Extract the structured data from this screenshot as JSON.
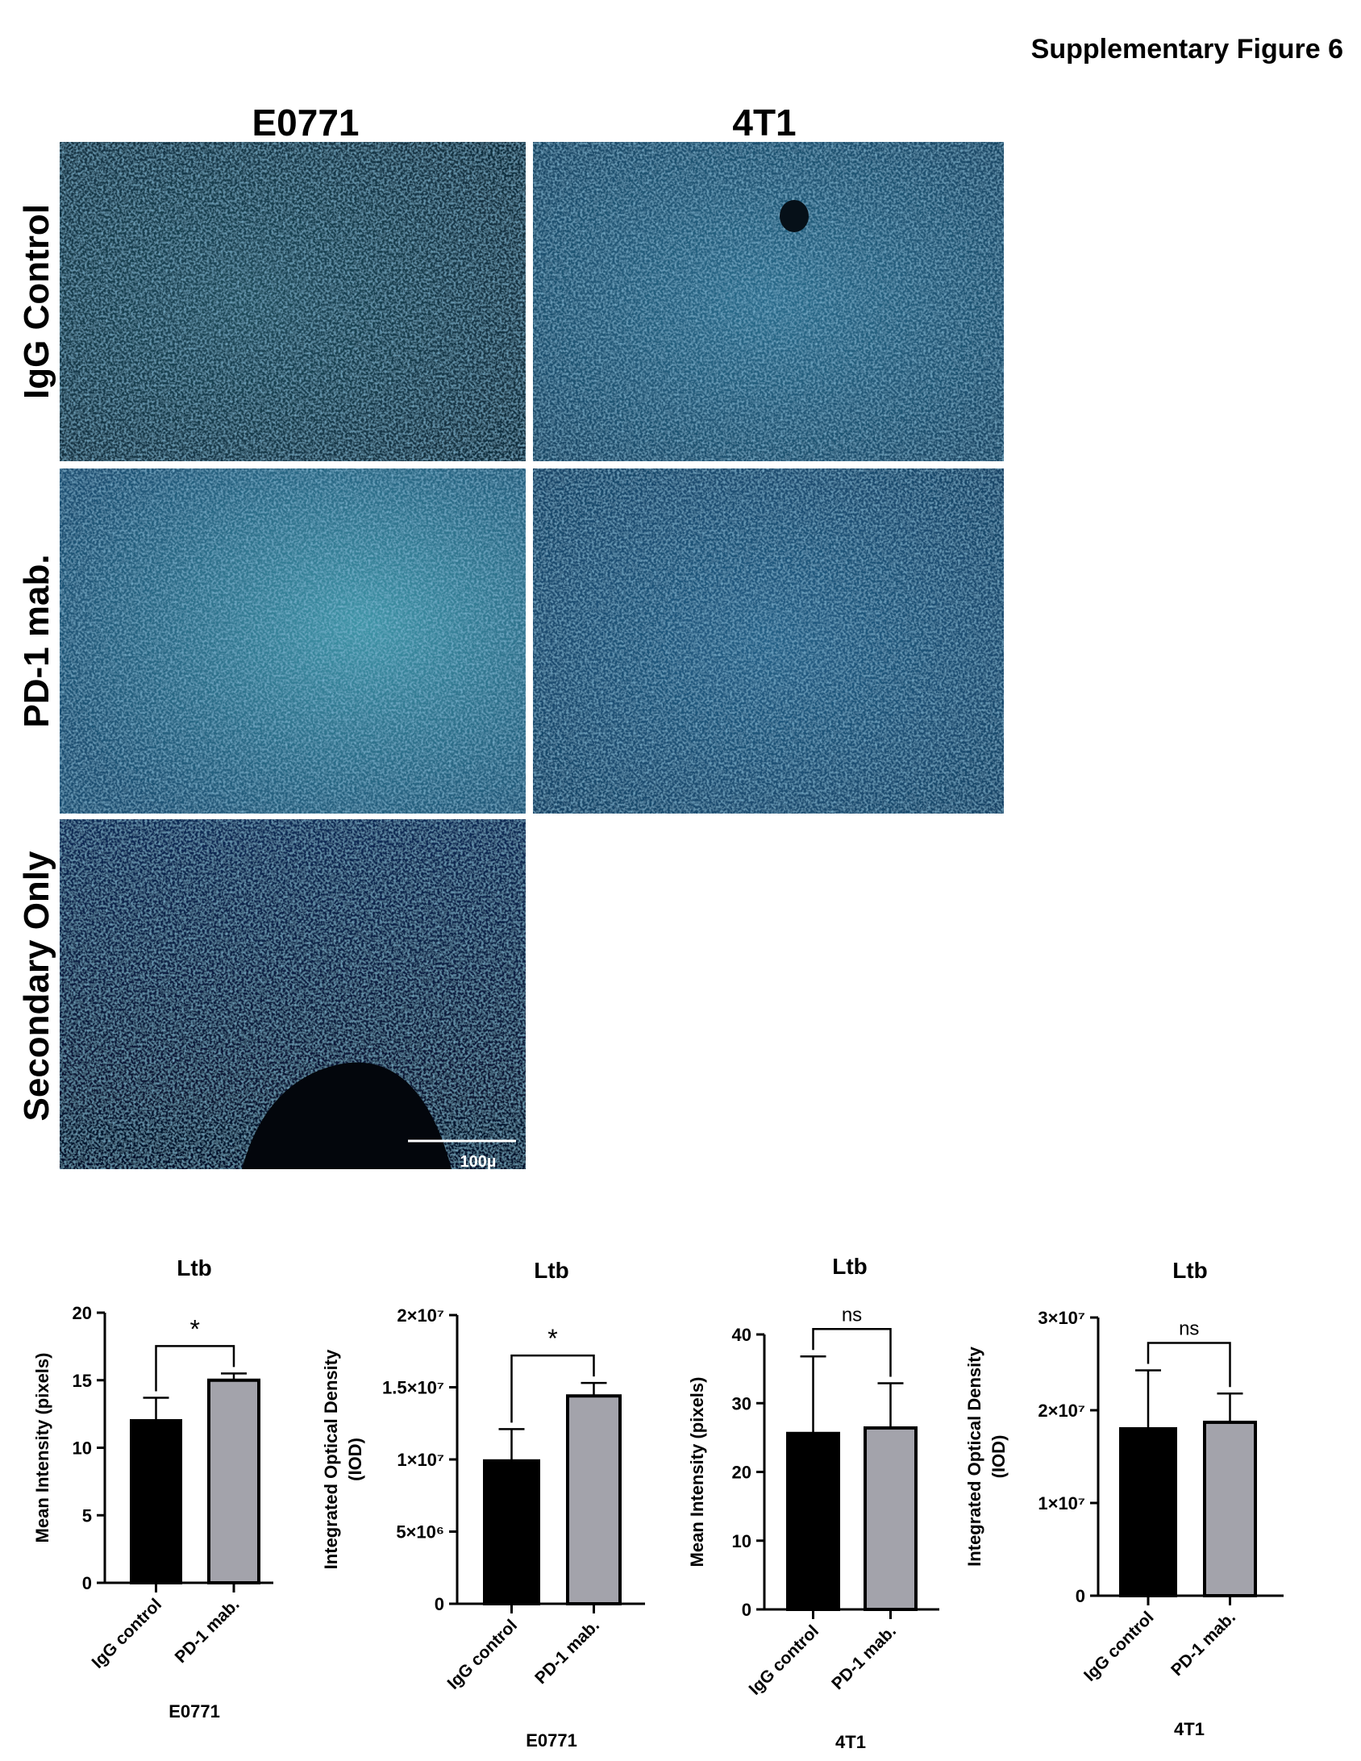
{
  "figure": {
    "title": "Supplementary Figure 6",
    "columns": [
      "E0771",
      "4T1"
    ],
    "rows": [
      "IgG Control",
      "PD-1 mab.",
      "Secondary Only"
    ],
    "scale_bar": "100µ"
  },
  "chart_data": [
    {
      "type": "bar",
      "title": "Ltb",
      "ylabel": [
        "Mean Intensity (pixels)"
      ],
      "xlabel": "E0771",
      "categories": [
        "IgG control",
        "PD-1 mab."
      ],
      "values": [
        12.0,
        15.0
      ],
      "errors": [
        1.7,
        0.5
      ],
      "colors": [
        "#000000",
        "#a3a3ab"
      ],
      "ylim": [
        0,
        20
      ],
      "yticks": [
        0,
        5,
        10,
        15,
        20
      ],
      "annotation": "*"
    },
    {
      "type": "bar",
      "title": "Ltb",
      "ylabel": [
        "Integrated Optical  Density",
        "(IOD)"
      ],
      "xlabel": "E0771",
      "categories": [
        "IgG control",
        "PD-1 mab."
      ],
      "values": [
        9900000,
        14400000
      ],
      "errors": [
        2200000,
        900000
      ],
      "colors": [
        "#000000",
        "#a3a3ab"
      ],
      "ylim": [
        0,
        20000000
      ],
      "yticks": [
        0,
        {
          "value": 5000000,
          "label": "5×10⁶"
        },
        {
          "value": 10000000,
          "label": "1×10⁷"
        },
        {
          "value": 15000000,
          "label": "1.5×10⁷"
        },
        {
          "value": 20000000,
          "label": "2×10⁷"
        }
      ],
      "annotation": "*"
    },
    {
      "type": "bar",
      "title": "Ltb",
      "ylabel": [
        "Mean Intensity (pixels)"
      ],
      "xlabel": "4T1",
      "categories": [
        "IgG control",
        "PD-1 mab."
      ],
      "values": [
        25.6,
        26.4
      ],
      "errors": [
        11.2,
        6.5
      ],
      "colors": [
        "#000000",
        "#a3a3ab"
      ],
      "ylim": [
        0,
        40
      ],
      "yticks": [
        0,
        10,
        20,
        30,
        40
      ],
      "annotation": "ns"
    },
    {
      "type": "bar",
      "title": "Ltb",
      "ylabel": [
        "Integrated Optical  Density",
        "(IOD)"
      ],
      "xlabel": "4T1",
      "categories": [
        "IgG control",
        "PD-1 mab."
      ],
      "values": [
        18000000,
        18700000
      ],
      "errors": [
        6300000,
        3100000
      ],
      "colors": [
        "#000000",
        "#a3a3ab"
      ],
      "ylim": [
        0,
        30000000
      ],
      "yticks": [
        0,
        {
          "value": 10000000,
          "label": "1×10⁷"
        },
        {
          "value": 20000000,
          "label": "2×10⁷"
        },
        {
          "value": 30000000,
          "label": "3×10⁷"
        }
      ],
      "annotation": "ns"
    }
  ]
}
